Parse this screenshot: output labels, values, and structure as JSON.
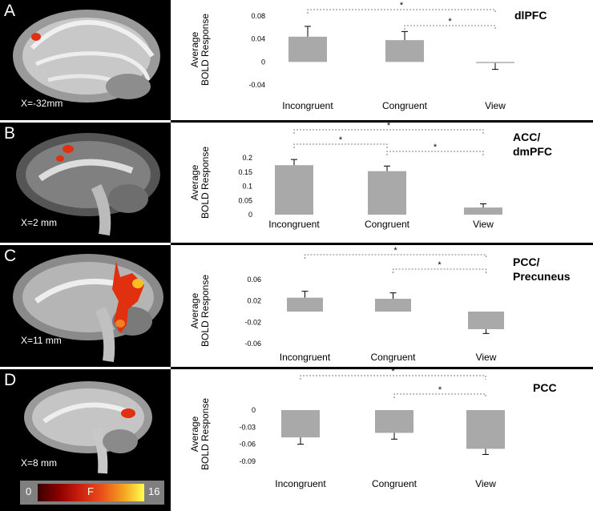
{
  "panels": [
    {
      "letter": "A",
      "coord": "X=-32mm",
      "region": [
        "dlPFC"
      ]
    },
    {
      "letter": "B",
      "coord": "X=2 mm",
      "region": [
        "ACC/",
        "dmPFC"
      ]
    },
    {
      "letter": "C",
      "coord": "X=11 mm",
      "region": [
        "PCC/",
        "Precuneus"
      ]
    },
    {
      "letter": "D",
      "coord": "X=8 mm",
      "region": [
        "PCC"
      ]
    }
  ],
  "colorbar": {
    "min": "0",
    "label": "F",
    "max": "16"
  },
  "colors": {
    "bar": "#a9a9a9",
    "activation": "#e03010"
  },
  "chart_data": [
    {
      "type": "bar",
      "categories": [
        "Incongruent",
        "Congruent",
        "View"
      ],
      "values": [
        0.044,
        0.038,
        -0.002
      ],
      "errors": [
        0.018,
        0.015,
        0.011
      ],
      "ylabel": "Average BOLD Response",
      "yticks": [
        "0.08",
        "0.04",
        "0",
        "-0.04"
      ],
      "ylim": [
        -0.04,
        0.08
      ],
      "significance": [
        {
          "from": "Incongruent",
          "to": "View",
          "label": "*"
        },
        {
          "from": "Congruent",
          "to": "View",
          "label": "*"
        }
      ]
    },
    {
      "type": "bar",
      "categories": [
        "Incongruent",
        "Congruent",
        "View"
      ],
      "values": [
        0.174,
        0.153,
        0.025
      ],
      "errors": [
        0.02,
        0.018,
        0.013
      ],
      "ylabel": "Average BOLD Response",
      "yticks": [
        "0.2",
        "0.15",
        "0.1",
        "0.05",
        "0"
      ],
      "ylim": [
        0,
        0.2
      ],
      "significance": [
        {
          "from": "Incongruent",
          "to": "View",
          "label": "*"
        },
        {
          "from": "Incongruent",
          "to": "Congruent",
          "label": "*"
        },
        {
          "from": "Congruent",
          "to": "View",
          "label": "*"
        }
      ]
    },
    {
      "type": "bar",
      "categories": [
        "Incongruent",
        "Congruent",
        "View"
      ],
      "values": [
        0.026,
        0.024,
        -0.033
      ],
      "errors": [
        0.012,
        0.011,
        0.008
      ],
      "ylabel": "Average BOLD Response",
      "yticks": [
        "0.06",
        "0.02",
        "-0.02",
        "-0.06"
      ],
      "ylim": [
        -0.06,
        0.06
      ],
      "significance": [
        {
          "from": "Incongruent",
          "to": "View",
          "label": "*"
        },
        {
          "from": "Congruent",
          "to": "View",
          "label": "*"
        }
      ]
    },
    {
      "type": "bar",
      "categories": [
        "Incongruent",
        "Congruent",
        "View"
      ],
      "values": [
        -0.048,
        -0.04,
        -0.068
      ],
      "errors": [
        0.012,
        0.011,
        0.01
      ],
      "ylabel": "Average BOLD Response",
      "yticks": [
        "0",
        "-0.03",
        "-0.06",
        "-0.09"
      ],
      "ylim": [
        -0.09,
        0
      ],
      "significance": [
        {
          "from": "Incongruent",
          "to": "View",
          "label": "*"
        },
        {
          "from": "Congruent",
          "to": "View",
          "label": "*"
        }
      ]
    }
  ]
}
